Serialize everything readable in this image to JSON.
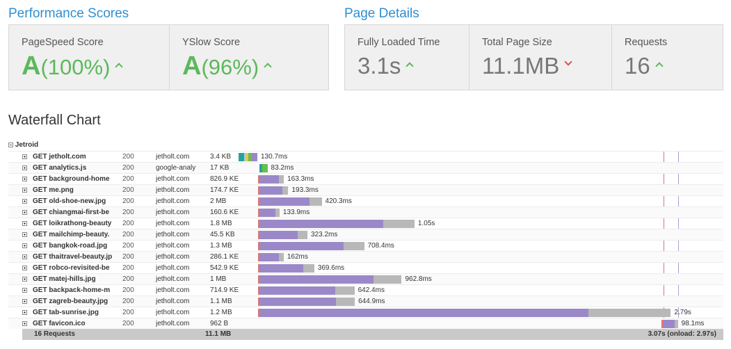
{
  "performance": {
    "title": "Performance Scores",
    "pagespeed": {
      "label": "PageSpeed Score",
      "grade": "A",
      "pct": "(100%)",
      "trend": "up"
    },
    "yslow": {
      "label": "YSlow Score",
      "grade": "A",
      "pct": "(96%)",
      "trend": "up"
    }
  },
  "details": {
    "title": "Page Details",
    "loaded": {
      "label": "Fully Loaded Time",
      "value": "3.1s",
      "trend": "up"
    },
    "size": {
      "label": "Total Page Size",
      "value": "11.1MB",
      "trend": "down"
    },
    "requests": {
      "label": "Requests",
      "value": "16",
      "trend": "up"
    }
  },
  "waterfall": {
    "title": "Waterfall Chart",
    "group": "Jetroid",
    "colors": {
      "blocking": "#a9cfe0",
      "dns": "#23a49d",
      "connect": "#f0c24b",
      "send": "#6abf4b",
      "wait": "#9b88c8",
      "receive": "#b8b8b8",
      "dom_loaded": "#d47a7a",
      "onload": "#b09ad6"
    },
    "rows": [
      {
        "url": "GET jetholt.com",
        "status": "200",
        "domain": "jetholt.com",
        "size": "3.4 KB",
        "time": "130.7ms",
        "start_ms": 0,
        "type": "doc"
      },
      {
        "url": "GET analytics.js",
        "status": "200",
        "domain": "google-analy",
        "size": "17 KB",
        "time": "83.2ms",
        "start_ms": 130,
        "type": "js"
      },
      {
        "url": "GET background-home",
        "status": "200",
        "domain": "jetholt.com",
        "size": "826.9 KE",
        "time": "163.3ms",
        "start_ms": 130,
        "type": "res"
      },
      {
        "url": "GET me.png",
        "status": "200",
        "domain": "jetholt.com",
        "size": "174.7 KE",
        "time": "193.3ms",
        "start_ms": 130,
        "type": "res"
      },
      {
        "url": "GET old-shoe-new.jpg",
        "status": "200",
        "domain": "jetholt.com",
        "size": "2 MB",
        "time": "420.3ms",
        "start_ms": 130,
        "type": "res"
      },
      {
        "url": "GET chiangmai-first-be",
        "status": "200",
        "domain": "jetholt.com",
        "size": "160.6 KE",
        "time": "133.9ms",
        "start_ms": 130,
        "type": "res"
      },
      {
        "url": "GET loikrathong-beauty",
        "status": "200",
        "domain": "jetholt.com",
        "size": "1.8 MB",
        "time": "1.05s",
        "start_ms": 130,
        "type": "res"
      },
      {
        "url": "GET mailchimp-beauty.",
        "status": "200",
        "domain": "jetholt.com",
        "size": "45.5 KB",
        "time": "323.2ms",
        "start_ms": 130,
        "type": "res"
      },
      {
        "url": "GET bangkok-road.jpg",
        "status": "200",
        "domain": "jetholt.com",
        "size": "1.3 MB",
        "time": "708.4ms",
        "start_ms": 130,
        "type": "res"
      },
      {
        "url": "GET thaitravel-beauty.jp",
        "status": "200",
        "domain": "jetholt.com",
        "size": "286.1 KE",
        "time": "162ms",
        "start_ms": 130,
        "type": "res"
      },
      {
        "url": "GET robco-revisited-be",
        "status": "200",
        "domain": "jetholt.com",
        "size": "542.9 KE",
        "time": "369.6ms",
        "start_ms": 130,
        "type": "res"
      },
      {
        "url": "GET matej-hills.jpg",
        "status": "200",
        "domain": "jetholt.com",
        "size": "1 MB",
        "time": "962.8ms",
        "start_ms": 130,
        "type": "res"
      },
      {
        "url": "GET backpack-home-m",
        "status": "200",
        "domain": "jetholt.com",
        "size": "714.9 KE",
        "time": "642.4ms",
        "start_ms": 130,
        "type": "res"
      },
      {
        "url": "GET zagreb-beauty.jpg",
        "status": "200",
        "domain": "jetholt.com",
        "size": "1.1 MB",
        "time": "644.9ms",
        "start_ms": 130,
        "type": "res"
      },
      {
        "url": "GET tab-sunrise.jpg",
        "status": "200",
        "domain": "jetholt.com",
        "size": "1.2 MB",
        "time": "2.79s",
        "start_ms": 130,
        "type": "res"
      },
      {
        "url": "GET favicon.ico",
        "status": "200",
        "domain": "jetholt.com",
        "size": "962 B",
        "time": "98.1ms",
        "start_ms": 2870,
        "type": "res"
      }
    ],
    "footer": {
      "requests": "16 Requests",
      "size": "11.1 MB",
      "timing": "3.07s (onload: 2.97s)"
    }
  }
}
